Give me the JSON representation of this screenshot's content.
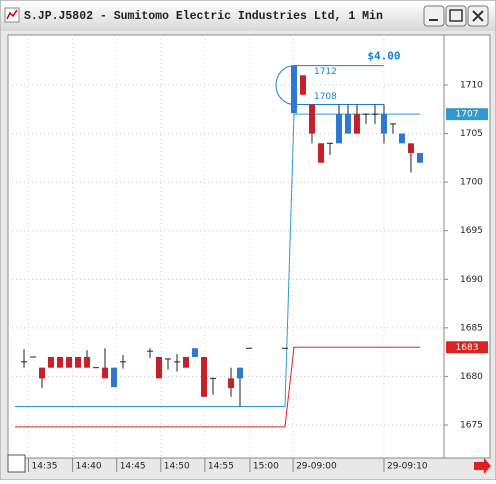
{
  "window": {
    "title": "S.JP.J5802 - Sumitomo Electric Industries Ltd, 1 Min"
  },
  "chart_data": {
    "type": "candlestick",
    "x": [
      0,
      1,
      2,
      3,
      4,
      5,
      6,
      7,
      8,
      9,
      10,
      11,
      14,
      15,
      16,
      17,
      18,
      19,
      20,
      21,
      23,
      24,
      25,
      29,
      30,
      31,
      32,
      33,
      34,
      35,
      36,
      37,
      38,
      39,
      40,
      41,
      42,
      43,
      44
    ],
    "open": [
      1681.5,
      1682,
      1679.8,
      1680.9,
      1680.9,
      1680.9,
      1680.9,
      1680.9,
      1680.9,
      1679.8,
      1680.9,
      1681.5,
      1682.6,
      1679.8,
      1681.8,
      1681.5,
      1680.9,
      1682.9,
      1677.9,
      1679.8,
      1678.8,
      1680.9,
      1682.9,
      1682.9,
      1712,
      1709,
      1705,
      1702,
      1704,
      1707,
      1707,
      1705,
      1707,
      1707,
      1707,
      1706,
      1705,
      1703,
      1703
    ],
    "high": [
      1682.8,
      1682,
      1680.9,
      1682,
      1682,
      1682,
      1682,
      1682.7,
      1680.9,
      1682.9,
      1680.9,
      1682.2,
      1682.9,
      1682,
      1681.8,
      1682.3,
      1682,
      1682.9,
      1682,
      1679.8,
      1680.9,
      1680.9,
      1682.9,
      1682.9,
      1712,
      1711,
      1708,
      1704,
      1704,
      1708,
      1708,
      1708,
      1707,
      1708,
      1708,
      1706,
      1705,
      1704,
      1703
    ],
    "low": [
      1680.9,
      1682,
      1678.8,
      1680.9,
      1680.9,
      1680.9,
      1680.9,
      1680.9,
      1680.9,
      1679.8,
      1678.9,
      1680.8,
      1681.9,
      1679.8,
      1680.7,
      1680.5,
      1680.9,
      1682,
      1677.9,
      1678.1,
      1677.9,
      1676.9,
      1682.9,
      1682.9,
      1707.1,
      1709,
      1704,
      1702,
      1702.8,
      1704,
      1705,
      1705,
      1706,
      1706,
      1704,
      1705,
      1704,
      1701,
      1702
    ],
    "close": [
      1681.5,
      1682,
      1680.9,
      1682,
      1682,
      1682,
      1682,
      1682,
      1680.9,
      1680.9,
      1678.9,
      1681.5,
      1682.6,
      1682,
      1681.8,
      1681.5,
      1682,
      1682,
      1682,
      1679.8,
      1679.8,
      1679.8,
      1682.9,
      1682.9,
      1707.1,
      1711,
      1708,
      1704,
      1704,
      1704,
      1705,
      1707,
      1707,
      1707,
      1705,
      1706,
      1704,
      1704,
      1702
    ],
    "up_color": "#c8202a",
    "down_color": "#2f78d0",
    "levels": [
      {
        "color": "#3399cc",
        "x": [
          -1,
          29,
          30,
          44
        ],
        "values": [
          1676.9,
          1676.9,
          1707,
          1707
        ]
      },
      {
        "color": "#dd2222",
        "x": [
          -1,
          29,
          30,
          44
        ],
        "values": [
          1674.8,
          1674.8,
          1683,
          1683
        ]
      }
    ],
    "measure": {
      "label": "$4.00",
      "from": 1712,
      "to": 1708,
      "x": [
        30,
        40
      ],
      "color": "#1a7fd0"
    },
    "xlim": [
      -1.78,
      46.67
    ],
    "ylim": [
      1671.6,
      1715.15
    ],
    "xticks": [
      {
        "value": 0.5,
        "label": "14:35"
      },
      {
        "value": 5.4,
        "label": "14:40"
      },
      {
        "value": 10.3,
        "label": "14:45"
      },
      {
        "value": 15.2,
        "label": "14:50"
      },
      {
        "value": 20.1,
        "label": "14:55"
      },
      {
        "value": 25.1,
        "label": "15:00"
      },
      {
        "value": 29.9,
        "label": "29-09:00"
      },
      {
        "value": 40,
        "label": "29-09:10"
      }
    ],
    "yticks": [
      1675,
      1680,
      1685,
      1690,
      1695,
      1700,
      1705,
      1710
    ],
    "grid": true
  }
}
